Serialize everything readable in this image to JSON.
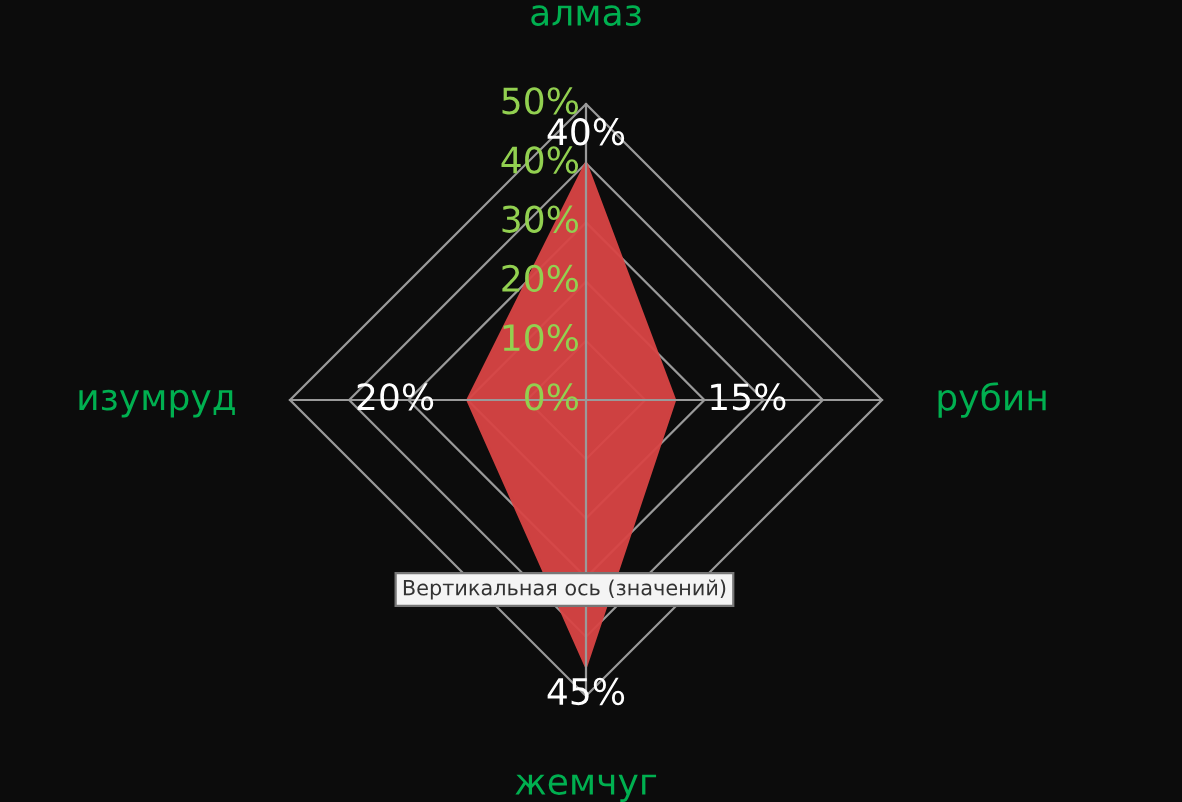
{
  "chart_data": {
    "type": "radar",
    "categories": [
      "алмаз",
      "рубин",
      "жемчуг",
      "изумруд"
    ],
    "series": [
      {
        "color": "#d94444",
        "values": [
          40,
          15,
          45,
          20
        ],
        "value_labels": [
          "40%",
          "15%",
          "45%",
          "20%"
        ]
      }
    ],
    "ylim": [
      0,
      50
    ],
    "yticks": [
      {
        "value": 0,
        "label": "0%"
      },
      {
        "value": 10,
        "label": "10%"
      },
      {
        "value": 20,
        "label": "20%"
      },
      {
        "value": 30,
        "label": "30%"
      },
      {
        "value": 40,
        "label": "40%"
      },
      {
        "value": 50,
        "label": "50%"
      }
    ],
    "grid": true,
    "annotations": [
      "Вертикальная ось (значений)"
    ]
  }
}
